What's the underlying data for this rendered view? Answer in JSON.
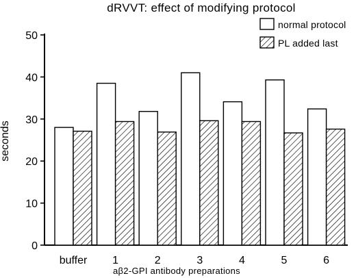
{
  "chart_data": {
    "type": "bar",
    "title": "dRVVT: effect of modifying protocol",
    "xlabel": "aβ2-GPI antibody preparations",
    "ylabel": "seconds",
    "ylim": [
      0,
      50
    ],
    "yticks": [
      "0",
      "10",
      "20",
      "30",
      "40",
      "50"
    ],
    "grid": false,
    "legend_position": "top-right",
    "categories": [
      "buffer",
      "1",
      "2",
      "3",
      "4",
      "5",
      "6"
    ],
    "series": [
      {
        "name": "normal protocol",
        "fill": "white",
        "values": [
          28.0,
          38.5,
          31.8,
          41.0,
          34.1,
          39.3,
          32.4
        ]
      },
      {
        "name": "PL added last",
        "fill": "hatched",
        "values": [
          27.1,
          29.4,
          26.9,
          29.6,
          29.4,
          26.7,
          27.6
        ]
      }
    ]
  }
}
